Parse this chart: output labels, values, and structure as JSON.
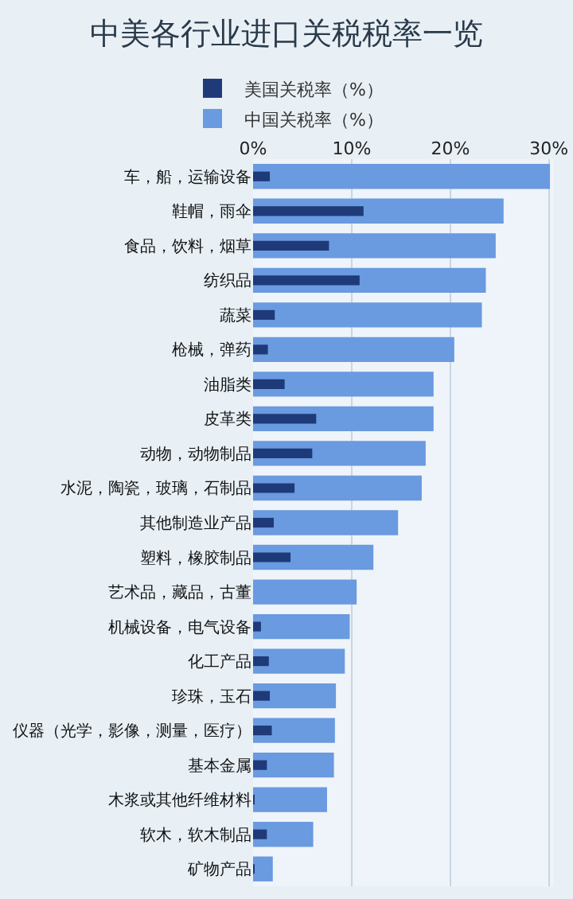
{
  "chart_data": {
    "type": "bar",
    "orientation": "horizontal",
    "title": "中美各行业进口关税税率一览",
    "categories": [
      "车，船，运输设备",
      "鞋帽，雨伞",
      "食品，饮料，烟草",
      "纺织品",
      "蔬菜",
      "枪械，弹药",
      "油脂类",
      "皮革类",
      "动物，动物制品",
      "水泥，陶瓷，玻璃，石制品",
      "其他制造业产品",
      "塑料，橡胶制品",
      "艺术品，藏品，古董",
      "机械设备，电气设备",
      "化工产品",
      "珍珠，玉石",
      "仪器（光学，影像，测量，医疗）",
      "基本金属",
      "木浆或其他纤维材料",
      "软木，软木制品",
      "矿物产品"
    ],
    "series": [
      {
        "name": "中国关税率（%）",
        "color": "#6a9ae0",
        "values": [
          30.1,
          25.4,
          24.6,
          23.6,
          23.2,
          20.4,
          18.3,
          18.3,
          17.5,
          17.1,
          14.7,
          12.2,
          10.5,
          9.8,
          9.3,
          8.4,
          8.3,
          8.2,
          7.5,
          6.1,
          2.0
        ]
      },
      {
        "name": "美国关税率（%）",
        "color": "#1f3a78",
        "values": [
          1.7,
          11.2,
          7.7,
          10.8,
          2.2,
          1.5,
          3.2,
          6.4,
          6.0,
          4.2,
          2.1,
          3.8,
          0,
          0.8,
          1.6,
          1.7,
          1.9,
          1.4,
          0.1,
          1.4,
          0.1
        ]
      }
    ],
    "xlim": [
      0,
      30.5
    ],
    "xticks": [
      {
        "value": 0,
        "label": "0%"
      },
      {
        "value": 10,
        "label": "10%"
      },
      {
        "value": 20,
        "label": "20%"
      },
      {
        "value": 30,
        "label": "30%"
      }
    ],
    "grid": "x",
    "legend": "top"
  }
}
